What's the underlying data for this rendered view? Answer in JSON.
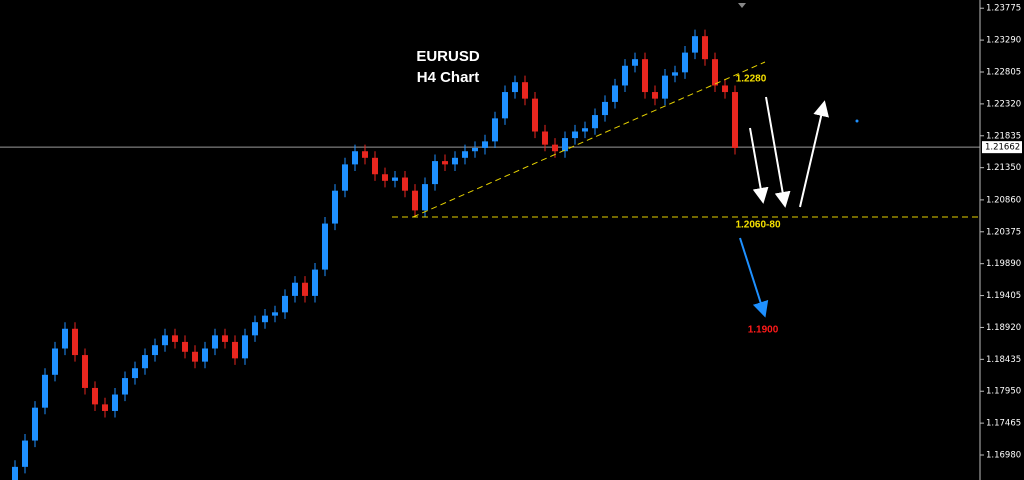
{
  "chart_data": {
    "type": "candlestick",
    "title": "EURUSD",
    "subtitle": "H4 Chart",
    "annotations": [
      "1.2280",
      "1.2060-80",
      "1.1900"
    ],
    "up_color": "#1e90ff",
    "down_color": "#e8261f",
    "current_price": 1.21662,
    "ylim": [
      1.166,
      1.239
    ],
    "yticks": [
      1.23775,
      {
        "value": 1.2329,
        "label": "1.23290"
      },
      1.22805,
      {
        "value": 1.2232,
        "label": "1.22320"
      },
      1.21835,
      {
        "value": 1.2135,
        "label": "1.21350"
      },
      {
        "value": 1.2086,
        "label": "1.20860"
      },
      1.20375,
      {
        "value": 1.1989,
        "label": "1.19890"
      },
      1.19405,
      {
        "value": 1.1892,
        "label": "1.18920"
      },
      1.18435,
      {
        "value": 1.1795,
        "label": "1.17950"
      },
      1.17465,
      {
        "value": 1.1698,
        "label": "1.16980"
      }
    ],
    "open": [
      1.166,
      1.168,
      1.172,
      1.177,
      1.182,
      1.186,
      1.189,
      1.185,
      1.18,
      1.1775,
      1.1765,
      1.179,
      1.1815,
      1.183,
      1.185,
      1.1865,
      1.188,
      1.187,
      1.1855,
      1.184,
      1.186,
      1.188,
      1.187,
      1.1845,
      1.188,
      1.19,
      1.191,
      1.1915,
      1.194,
      1.196,
      1.194,
      1.198,
      1.205,
      1.21,
      1.214,
      1.216,
      1.215,
      1.2125,
      1.2115,
      1.212,
      1.21,
      1.207,
      1.211,
      1.2145,
      1.214,
      1.215,
      1.216,
      1.2165,
      1.2175,
      1.221,
      1.225,
      1.2265,
      1.224,
      1.219,
      1.217,
      1.216,
      1.218,
      1.219,
      1.2195,
      1.2215,
      1.2235,
      1.226,
      1.229,
      1.23,
      1.225,
      1.224,
      1.2275,
      1.228,
      1.231,
      1.2335,
      1.23,
      1.226,
      1.225
    ],
    "high": [
      1.169,
      1.173,
      1.178,
      1.183,
      1.187,
      1.19,
      1.19,
      1.186,
      1.181,
      1.1785,
      1.18,
      1.1825,
      1.184,
      1.186,
      1.1875,
      1.189,
      1.189,
      1.188,
      1.1865,
      1.187,
      1.189,
      1.189,
      1.188,
      1.189,
      1.191,
      1.192,
      1.1925,
      1.195,
      1.197,
      1.197,
      1.199,
      1.206,
      1.211,
      1.215,
      1.217,
      1.217,
      1.216,
      1.2135,
      1.213,
      1.213,
      1.211,
      1.212,
      1.2155,
      1.2155,
      1.216,
      1.217,
      1.2175,
      1.2185,
      1.222,
      1.226,
      1.2275,
      1.2275,
      1.225,
      1.22,
      1.218,
      1.219,
      1.22,
      1.2205,
      1.2225,
      1.2245,
      1.227,
      1.23,
      1.231,
      1.231,
      1.226,
      1.2285,
      1.229,
      1.232,
      1.2345,
      1.2345,
      1.231,
      1.227,
      1.226
    ],
    "low": [
      1.165,
      1.167,
      1.171,
      1.176,
      1.181,
      1.185,
      1.184,
      1.179,
      1.1765,
      1.1755,
      1.1755,
      1.178,
      1.1805,
      1.182,
      1.184,
      1.1855,
      1.186,
      1.1845,
      1.183,
      1.183,
      1.185,
      1.186,
      1.1835,
      1.1835,
      1.187,
      1.189,
      1.19,
      1.1905,
      1.193,
      1.193,
      1.193,
      1.197,
      1.204,
      1.209,
      1.213,
      1.214,
      1.2115,
      1.2105,
      1.2105,
      1.209,
      1.206,
      1.206,
      1.21,
      1.213,
      1.213,
      1.214,
      1.215,
      1.2155,
      1.2165,
      1.22,
      1.224,
      1.223,
      1.218,
      1.216,
      1.215,
      1.215,
      1.217,
      1.218,
      1.2185,
      1.2205,
      1.2225,
      1.225,
      1.228,
      1.224,
      1.223,
      1.223,
      1.2265,
      1.227,
      1.23,
      1.229,
      1.225,
      1.224,
      1.2155
    ],
    "close": [
      1.168,
      1.172,
      1.177,
      1.182,
      1.186,
      1.189,
      1.185,
      1.18,
      1.1775,
      1.1765,
      1.179,
      1.1815,
      1.183,
      1.185,
      1.1865,
      1.188,
      1.187,
      1.1855,
      1.184,
      1.186,
      1.188,
      1.187,
      1.1845,
      1.188,
      1.19,
      1.191,
      1.1915,
      1.194,
      1.196,
      1.194,
      1.198,
      1.205,
      1.21,
      1.214,
      1.216,
      1.215,
      1.2125,
      1.2115,
      1.212,
      1.21,
      1.207,
      1.211,
      1.2145,
      1.214,
      1.215,
      1.216,
      1.2165,
      1.2175,
      1.221,
      1.225,
      1.2265,
      1.224,
      1.219,
      1.217,
      1.216,
      1.218,
      1.219,
      1.2195,
      1.2215,
      1.2235,
      1.226,
      1.229,
      1.23,
      1.225,
      1.224,
      1.2275,
      1.228,
      1.231,
      1.2335,
      1.23,
      1.226,
      1.225,
      1.2165
    ]
  }
}
